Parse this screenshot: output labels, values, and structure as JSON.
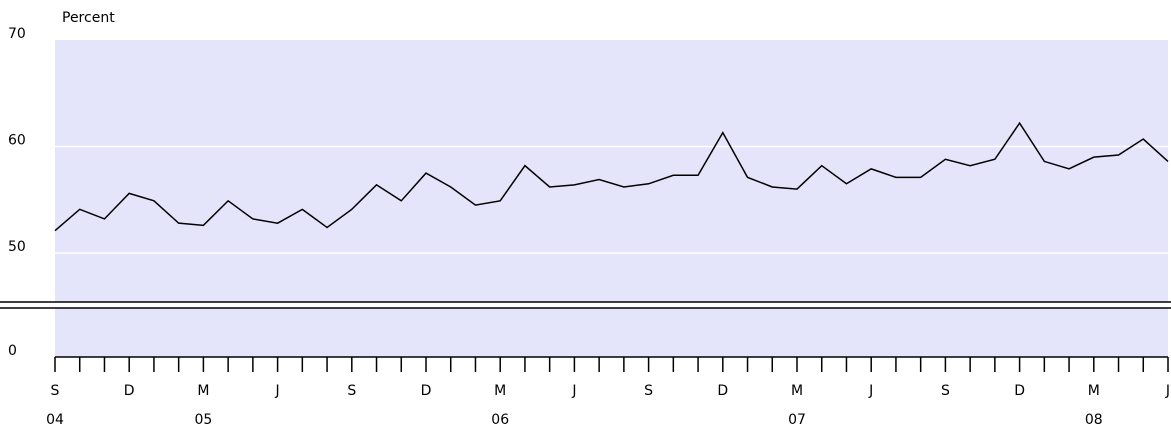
{
  "chart_data": {
    "type": "line",
    "y_label": "Percent",
    "categories": [
      "S",
      null,
      null,
      "D",
      null,
      null,
      "M",
      null,
      null,
      "J",
      null,
      null,
      "S",
      null,
      null,
      "D",
      null,
      null,
      "M",
      null,
      null,
      "J",
      null,
      null,
      "S",
      null,
      null,
      "D",
      null,
      null,
      "M",
      null,
      null,
      "J",
      null,
      null,
      "S",
      null,
      null,
      "D",
      null,
      null,
      "M",
      null,
      null,
      "J"
    ],
    "category_years": [
      "04",
      null,
      null,
      null,
      null,
      null,
      "05",
      null,
      null,
      null,
      null,
      null,
      null,
      null,
      null,
      null,
      null,
      null,
      "06",
      null,
      null,
      null,
      null,
      null,
      null,
      null,
      null,
      null,
      null,
      null,
      "07",
      null,
      null,
      null,
      null,
      null,
      null,
      null,
      null,
      null,
      null,
      null,
      "08",
      null,
      null,
      null
    ],
    "series": [
      {
        "color": "#000000",
        "values": [
          52.1,
          54.1,
          53.2,
          55.6,
          54.9,
          52.8,
          52.6,
          54.9,
          53.2,
          52.8,
          54.1,
          52.4,
          54.1,
          56.4,
          54.9,
          57.5,
          56.2,
          54.5,
          54.9,
          58.2,
          56.2,
          56.4,
          56.9,
          56.2,
          56.5,
          57.3,
          57.3,
          61.3,
          57.1,
          56.2,
          56.0,
          58.2,
          56.5,
          57.9,
          57.1,
          57.1,
          58.8,
          58.2,
          58.8,
          62.2,
          58.6,
          57.9,
          59.0,
          59.2,
          60.7,
          58.6
        ]
      }
    ],
    "ylim": [
      0,
      70
    ],
    "yticks": [
      0,
      50,
      60,
      70
    ],
    "axis_break": true,
    "grid": true,
    "plot_background": "#e4e4fa"
  }
}
